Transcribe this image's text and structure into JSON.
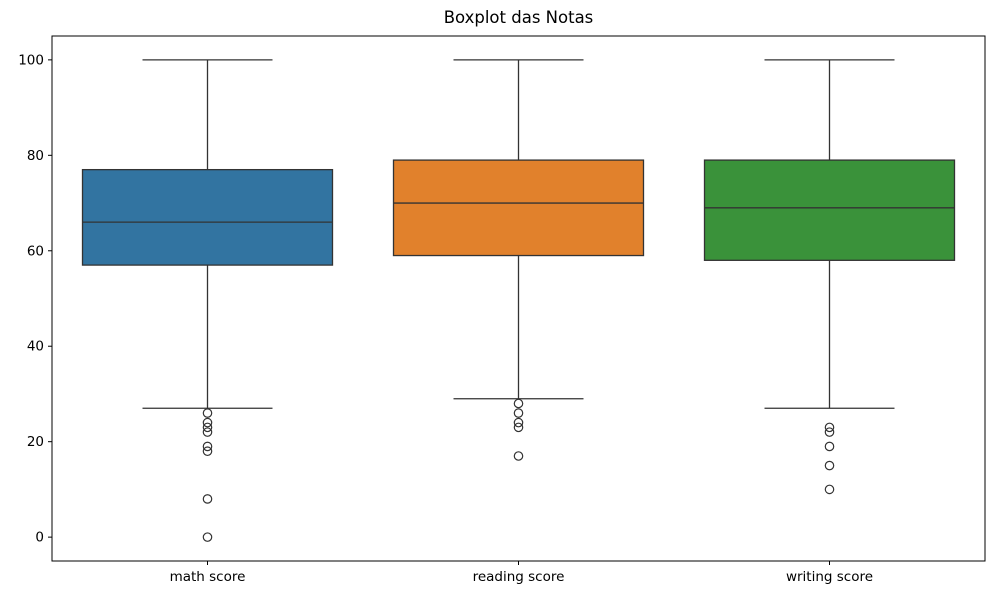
{
  "chart_data": {
    "type": "boxplot",
    "title": "Boxplot das Notas",
    "xlabel": "",
    "ylabel": "",
    "categories": [
      "math score",
      "reading score",
      "writing score"
    ],
    "yticks": [
      0,
      20,
      40,
      60,
      80,
      100
    ],
    "ylim": [
      -5,
      105
    ],
    "grid": false,
    "legend": "none",
    "series": [
      {
        "label": "math score",
        "whisker_low": 27,
        "q1": 57,
        "median": 66,
        "q3": 77,
        "whisker_high": 100,
        "outliers": [
          26,
          24,
          23,
          22,
          19,
          18,
          8,
          0
        ],
        "color": "#3274a1"
      },
      {
        "label": "reading score",
        "whisker_low": 29,
        "q1": 59,
        "median": 70,
        "q3": 79,
        "whisker_high": 100,
        "outliers": [
          28,
          26,
          24,
          23,
          17
        ],
        "color": "#e1812c"
      },
      {
        "label": "writing score",
        "whisker_low": 27,
        "q1": 58,
        "median": 69,
        "q3": 79,
        "whisker_high": 100,
        "outliers": [
          23,
          22,
          19,
          15,
          10
        ],
        "color": "#3a923a"
      }
    ],
    "styles": {
      "line_color": "#333333",
      "flier_edge_color": "#333333",
      "axis_color": "#000000",
      "tick_label_color": "#000000",
      "background": "#ffffff"
    }
  }
}
